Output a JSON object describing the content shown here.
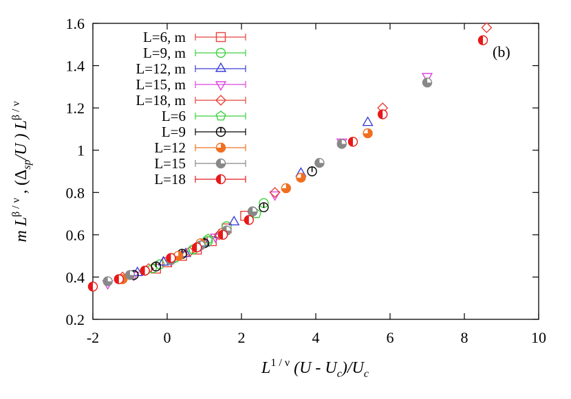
{
  "chart_data": {
    "type": "scatter",
    "panel_label": "(b)",
    "xlim": [
      -2,
      10
    ],
    "ylim": [
      0.2,
      1.6
    ],
    "x_ticks": [
      -2,
      0,
      2,
      4,
      6,
      8,
      10
    ],
    "y_ticks": [
      0.2,
      0.4,
      0.6,
      0.8,
      1,
      1.2,
      1.4,
      1.6
    ],
    "x_tick_labels": [
      "-2",
      "0",
      "2",
      "4",
      "6",
      "8",
      "10"
    ],
    "y_tick_labels": [
      "0.2",
      "0.4",
      "0.6",
      "0.8",
      "1",
      "1.2",
      "1.4",
      "1.6"
    ],
    "legend_position": "top-left",
    "grid": false,
    "xlabel": {
      "base": "L",
      "sup": "1 / ν",
      "rest1": " (U - U",
      "sub": "c",
      "rest2": ")/U",
      "sub2": "c"
    },
    "ylabel": {
      "m": "m L",
      "sup1": "β / ν",
      "mid": " , (Δ",
      "sub": "sp",
      "rest": "/U ) L",
      "sup2": "β / ν"
    },
    "series": [
      {
        "name": "L=6, m",
        "marker": "square-open",
        "color": "#e8423a",
        "points": [
          [
            -0.3,
            0.44
          ],
          [
            0.0,
            0.47
          ],
          [
            0.4,
            0.5
          ],
          [
            0.8,
            0.53
          ],
          [
            1.2,
            0.57
          ],
          [
            1.6,
            0.63
          ],
          [
            2.1,
            0.69
          ]
        ]
      },
      {
        "name": "L=9, m",
        "marker": "circle-open",
        "color": "#3fcf3f",
        "points": [
          [
            -0.6,
            0.43
          ],
          [
            -0.2,
            0.46
          ],
          [
            0.2,
            0.49
          ],
          [
            0.7,
            0.53
          ],
          [
            1.1,
            0.57
          ],
          [
            1.6,
            0.64
          ],
          [
            2.6,
            0.75
          ]
        ]
      },
      {
        "name": "L=12, m",
        "marker": "triangle-up-open",
        "color": "#3a3fd8",
        "points": [
          [
            -0.8,
            0.42
          ],
          [
            -0.1,
            0.47
          ],
          [
            0.5,
            0.51
          ],
          [
            1.0,
            0.56
          ],
          [
            1.4,
            0.6
          ],
          [
            1.8,
            0.66
          ],
          [
            3.6,
            0.89
          ],
          [
            5.4,
            1.13
          ]
        ]
      },
      {
        "name": "L=15, m",
        "marker": "triangle-down-open",
        "color": "#dd44dd",
        "points": [
          [
            -1.6,
            0.37
          ],
          [
            -0.9,
            0.41
          ],
          [
            0.1,
            0.48
          ],
          [
            0.9,
            0.55
          ],
          [
            1.3,
            0.59
          ],
          [
            2.9,
            0.79
          ],
          [
            4.7,
            1.04
          ],
          [
            7.0,
            1.35
          ]
        ]
      },
      {
        "name": "L=18, m",
        "marker": "diamond-open",
        "color": "#e8423a",
        "points": [
          [
            -1.2,
            0.4
          ],
          [
            -0.5,
            0.44
          ],
          [
            0.6,
            0.52
          ],
          [
            1.4,
            0.6
          ],
          [
            2.9,
            0.8
          ],
          [
            5.8,
            1.2
          ],
          [
            8.6,
            1.58
          ]
        ]
      },
      {
        "name": "L=6",
        "marker": "pentagon-open",
        "color": "#3fcf3f",
        "points": [
          [
            -0.4,
            0.44
          ],
          [
            0.2,
            0.49
          ],
          [
            0.7,
            0.53
          ],
          [
            1.1,
            0.58
          ],
          [
            1.6,
            0.62
          ],
          [
            2.4,
            0.7
          ]
        ]
      },
      {
        "name": "L=9",
        "marker": "circle-tick",
        "color": "#000000",
        "points": [
          [
            -0.9,
            0.41
          ],
          [
            -0.3,
            0.45
          ],
          [
            0.4,
            0.51
          ],
          [
            1.0,
            0.56
          ],
          [
            2.3,
            0.71
          ],
          [
            2.6,
            0.73
          ],
          [
            3.9,
            0.9
          ]
        ]
      },
      {
        "name": "L=12",
        "marker": "circle-quarter",
        "color": "#f07020",
        "points": [
          [
            -1.2,
            0.39
          ],
          [
            -0.6,
            0.43
          ],
          [
            0.3,
            0.5
          ],
          [
            0.9,
            0.56
          ],
          [
            1.5,
            0.61
          ],
          [
            3.2,
            0.82
          ],
          [
            3.6,
            0.87
          ],
          [
            5.4,
            1.08
          ]
        ]
      },
      {
        "name": "L=15",
        "marker": "circle-halfgray",
        "color": "#888888",
        "points": [
          [
            -1.6,
            0.38
          ],
          [
            -1.0,
            0.41
          ],
          [
            0.1,
            0.48
          ],
          [
            0.9,
            0.55
          ],
          [
            1.6,
            0.62
          ],
          [
            2.3,
            0.71
          ],
          [
            4.1,
            0.94
          ],
          [
            4.7,
            1.03
          ],
          [
            7.0,
            1.32
          ]
        ]
      },
      {
        "name": "L=18",
        "marker": "circle-half",
        "color": "#e81818",
        "points": [
          [
            -2.0,
            0.355
          ],
          [
            -1.3,
            0.39
          ],
          [
            -0.6,
            0.43
          ],
          [
            0.1,
            0.49
          ],
          [
            0.8,
            0.54
          ],
          [
            1.5,
            0.6
          ],
          [
            2.2,
            0.67
          ],
          [
            5.0,
            1.04
          ],
          [
            5.8,
            1.17
          ],
          [
            8.5,
            1.52
          ]
        ]
      }
    ]
  }
}
